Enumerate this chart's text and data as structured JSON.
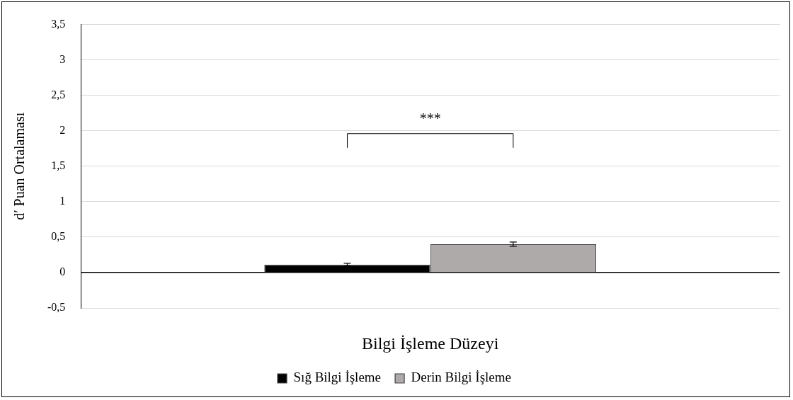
{
  "chart_data": {
    "type": "bar",
    "xlabel": "Bilgi İşleme Düzeyi",
    "ylabel": "d′ Puan Ortalaması",
    "categories": [
      null
    ],
    "series": [
      {
        "name": "Sığ Bilgi İşleme",
        "color": "#000000",
        "values": [
          0.11
        ],
        "errors": [
          0.02
        ]
      },
      {
        "name": "Derin Bilgi İşleme",
        "color": "#aeaaaa",
        "values": [
          0.4
        ],
        "errors": [
          0.03
        ]
      }
    ],
    "ylim": [
      -0.5,
      3.5
    ],
    "yticks": [
      {
        "value": -0.5,
        "label": "-0,5"
      },
      0,
      {
        "value": 0.5,
        "label": "0,5"
      },
      1,
      {
        "value": 1.5,
        "label": "1,5"
      },
      2,
      {
        "value": 2.5,
        "label": "2,5"
      },
      3,
      {
        "value": 3.5,
        "label": "3,5"
      }
    ],
    "grid": "y",
    "legend": "bottom",
    "annotations": [
      "***"
    ]
  }
}
